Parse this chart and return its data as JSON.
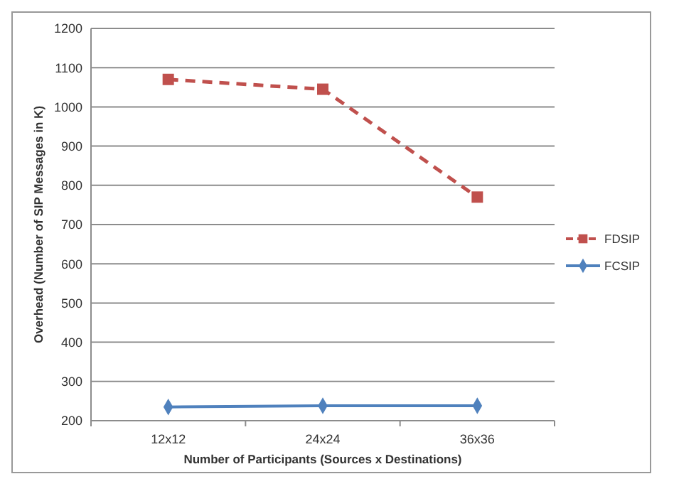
{
  "chart_data": {
    "type": "line",
    "xlabel": "Number of Participants (Sources x Destinations)",
    "ylabel": "Overhead (Number of SIP Messages in K)",
    "categories": [
      "12x12",
      "24x24",
      "36x36"
    ],
    "ylim": [
      200,
      1200
    ],
    "yticks": [
      200,
      300,
      400,
      500,
      600,
      700,
      800,
      900,
      1000,
      1100,
      1200
    ],
    "grid": "y",
    "legend": "right",
    "series": [
      {
        "name": "FDSIP",
        "color": "#c0504d",
        "values": [
          1070,
          1045,
          770
        ],
        "marker": "square",
        "line_style": "dashed"
      },
      {
        "name": "FCSIP",
        "color": "#4f81bd",
        "values": [
          235,
          238,
          238
        ],
        "marker": "diamond",
        "line_style": "solid"
      }
    ]
  }
}
